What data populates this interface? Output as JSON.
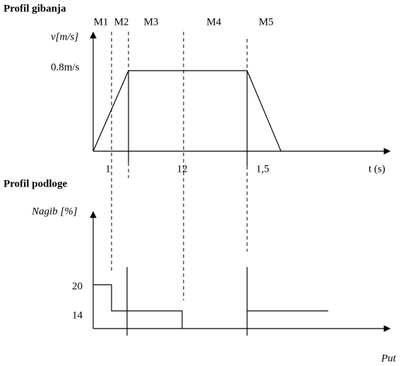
{
  "top": {
    "title": "Profil gibanja",
    "y_label": "v[m/s]",
    "y_tick": "0.8m/s",
    "x_label": "t (s)",
    "x_ticks": [
      "1",
      "12",
      "1,5"
    ],
    "phases": [
      "M1",
      "M2",
      "M3",
      "M4",
      "M5"
    ]
  },
  "bottom": {
    "title": "Profil podloge",
    "y_label": "Nagib [%]",
    "y_ticks": [
      "20",
      "14"
    ],
    "x_label": "Put"
  }
}
